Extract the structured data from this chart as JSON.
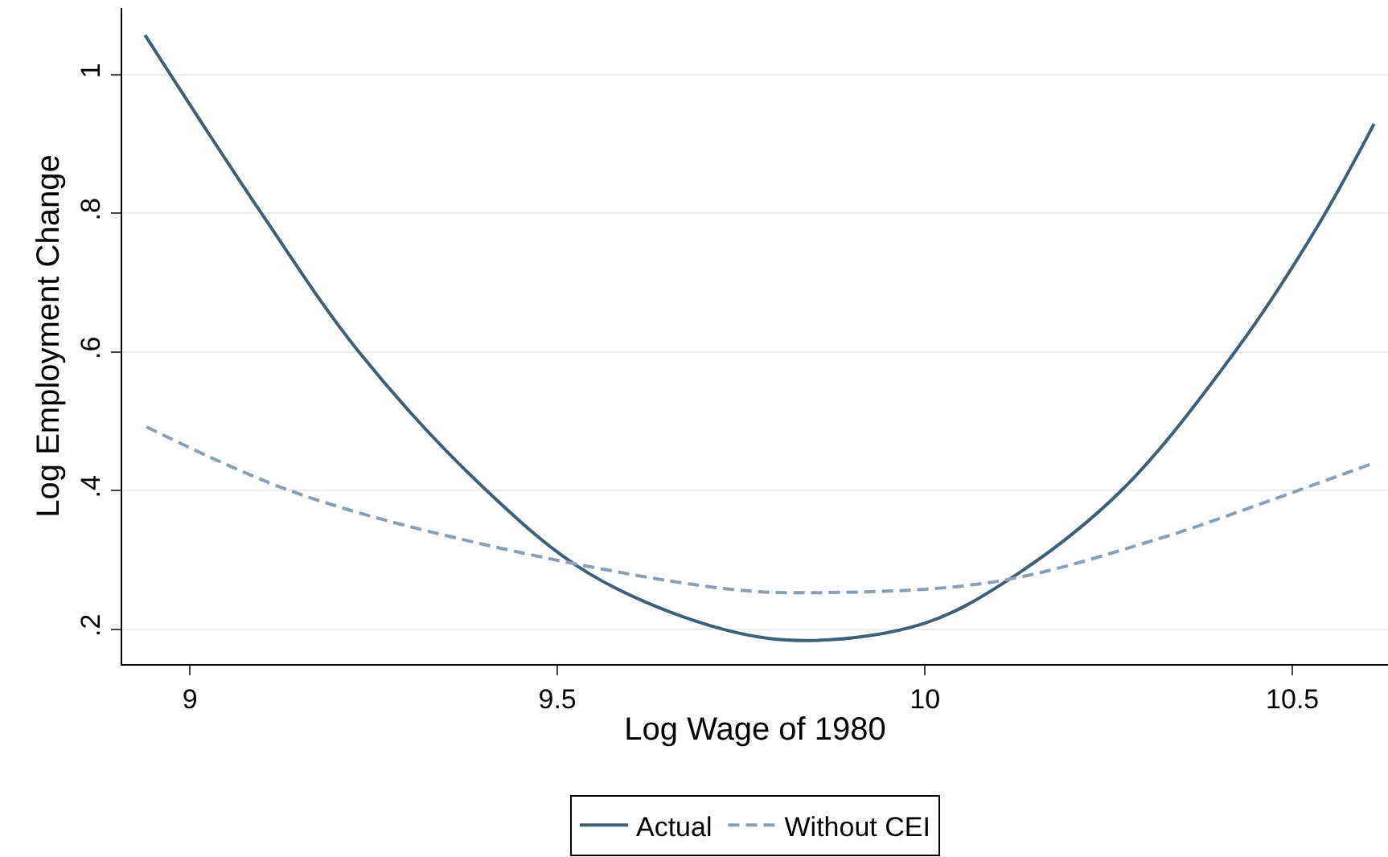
{
  "chart_data": {
    "type": "line",
    "xlabel": "Log Wage of 1980",
    "ylabel": "Log Employment Change",
    "xlim": [
      8.908,
      10.63
    ],
    "ylim": [
      0.15,
      1.096
    ],
    "xticks": [
      9,
      9.5,
      10,
      10.5
    ],
    "yticks": [
      {
        "value": 0.2,
        "label": ".2"
      },
      {
        "value": 0.4,
        "label": ".4"
      },
      {
        "value": 0.6,
        "label": ".6"
      },
      {
        "value": 0.8,
        "label": ".8"
      },
      {
        "value": 1,
        "label": "1"
      }
    ],
    "grid": "y",
    "legend": "bottom",
    "series": [
      {
        "name": "Actual",
        "color": "#3e5f78",
        "line_style": "solid",
        "x": [
          8.939,
          9.098,
          9.23,
          9.398,
          9.544,
          9.726,
          9.846,
          10.0,
          10.113,
          10.266,
          10.425,
          10.534,
          10.611
        ],
        "values": [
          1.057,
          0.799,
          0.6,
          0.406,
          0.28,
          0.2,
          0.184,
          0.209,
          0.271,
          0.399,
          0.605,
          0.781,
          0.929
        ]
      },
      {
        "name": "Without CEI",
        "color": "#8a9fb4",
        "line_style": "dashed",
        "x": [
          8.941,
          9.139,
          9.398,
          9.726,
          9.857,
          10.097,
          10.316,
          10.462,
          10.611
        ],
        "values": [
          0.492,
          0.399,
          0.323,
          0.259,
          0.253,
          0.269,
          0.33,
          0.383,
          0.44
        ]
      }
    ]
  }
}
